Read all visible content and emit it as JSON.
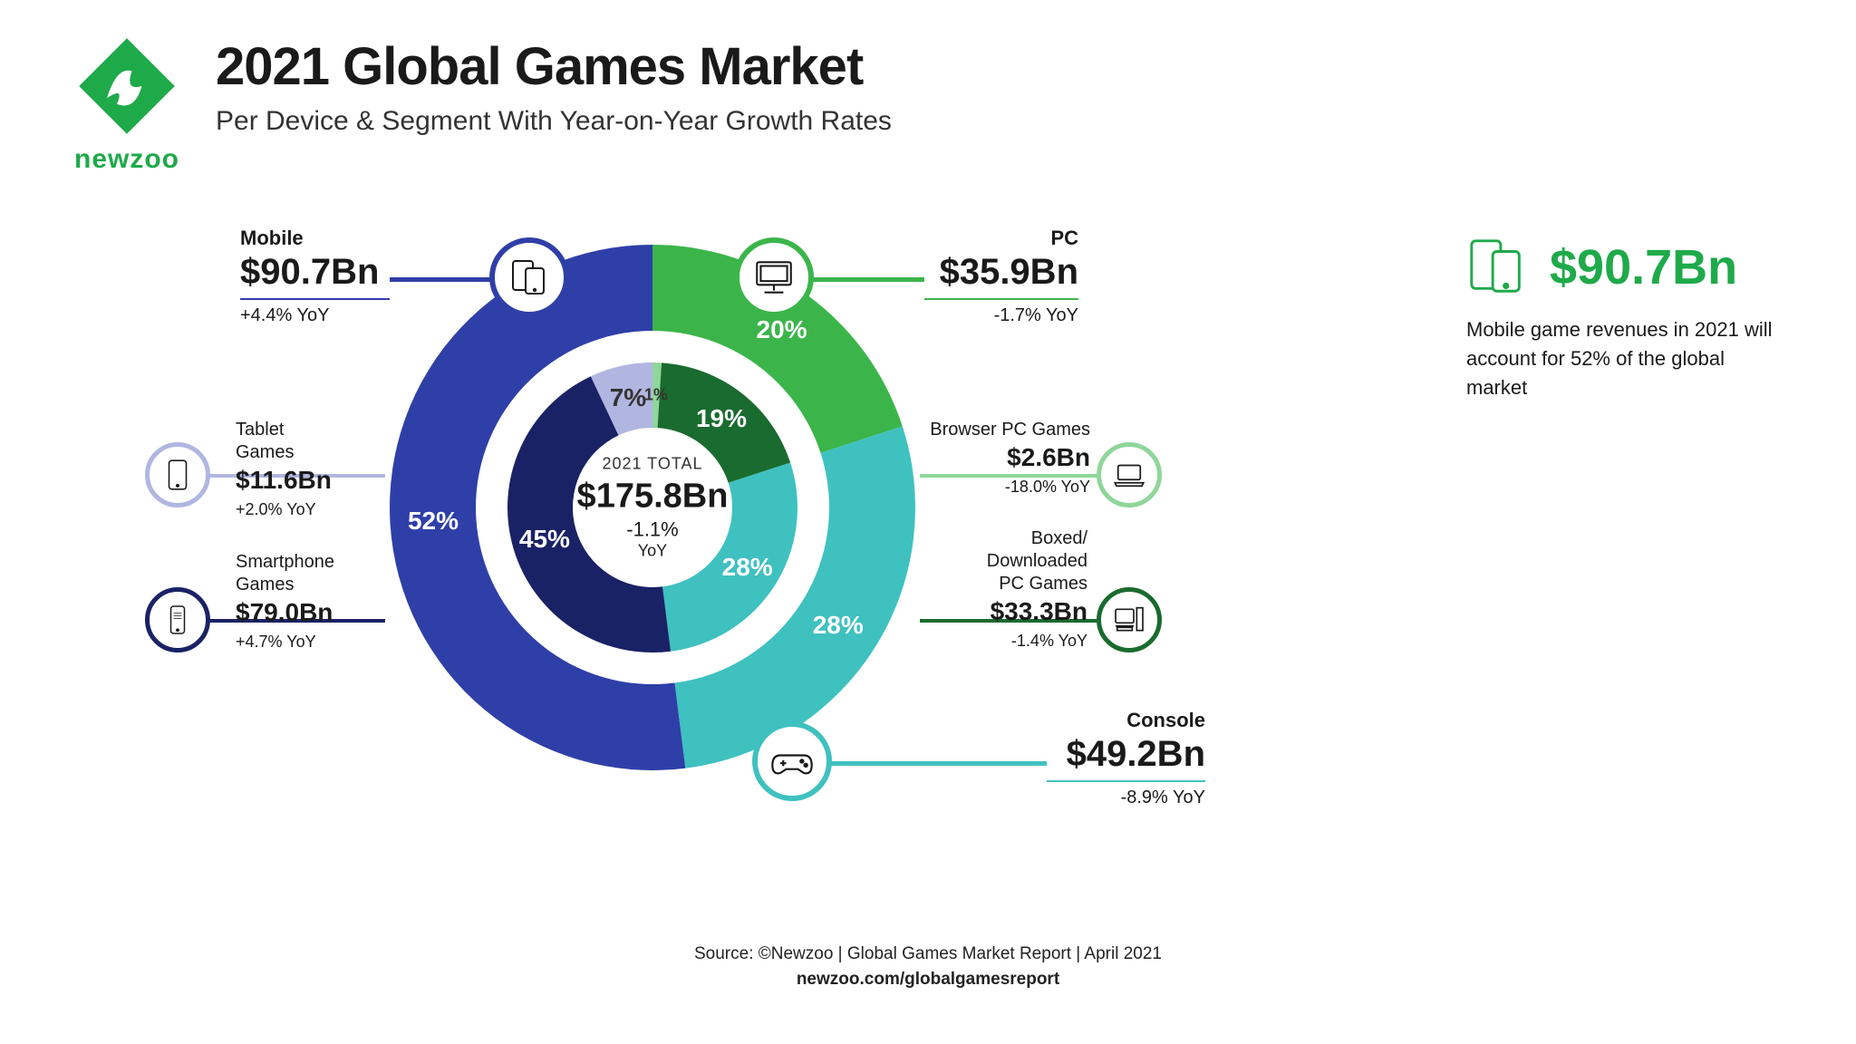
{
  "brand": {
    "name": "newzoo",
    "color": "#1faa4a"
  },
  "title": "2021 Global Games Market",
  "subtitle": "Per Device & Segment With Year-on-Year Growth Rates",
  "colors": {
    "mobile": "#2f3fa8",
    "pc": "#3bb54a",
    "console": "#3fc1c0",
    "tablet": "#b0b6e0",
    "smartphone": "#1a2266",
    "browserPC": "#8fd69a",
    "boxedPC": "#1a6b2f",
    "consoleInner": "#3fc1c0",
    "text": "#1a1a1a",
    "bg": "#ffffff"
  },
  "donut": {
    "outer_radius": 290,
    "outer_thickness": 95,
    "inner_radius": 160,
    "inner_thickness": 72,
    "type": "nested-donut",
    "outer": [
      {
        "key": "pc",
        "label": "20%",
        "pct": 20
      },
      {
        "key": "console",
        "label": "28%",
        "pct": 28
      },
      {
        "key": "mobile",
        "label": "52%",
        "pct": 52
      }
    ],
    "inner": [
      {
        "key": "browserPC",
        "label": "1%",
        "pct": 1
      },
      {
        "key": "boxedPC",
        "label": "19%",
        "pct": 19
      },
      {
        "key": "consoleInner",
        "label": "28%",
        "pct": 28
      },
      {
        "key": "smartphone",
        "label": "45%",
        "pct": 45
      },
      {
        "key": "tablet",
        "label": "7%",
        "pct": 7
      }
    ]
  },
  "center": {
    "label": "2021 TOTAL",
    "value": "$175.8Bn",
    "yoy": "-1.1%",
    "yoy2": "YoY"
  },
  "callouts": {
    "mobile": {
      "label": "Mobile",
      "value": "$90.7Bn",
      "yoy": "+4.4% YoY"
    },
    "pc": {
      "label": "PC",
      "value": "$35.9Bn",
      "yoy": "-1.7% YoY"
    },
    "console": {
      "label": "Console",
      "value": "$49.2Bn",
      "yoy": "-8.9% YoY"
    },
    "tablet": {
      "label": "Tablet Games",
      "value": "$11.6Bn",
      "yoy": "+2.0% YoY"
    },
    "smart": {
      "label": "Smartphone\nGames",
      "value": "$79.0Bn",
      "yoy": "+4.7% YoY"
    },
    "browser": {
      "label": "Browser PC Games",
      "value": "$2.6Bn",
      "yoy": "-18.0% YoY"
    },
    "boxed": {
      "label": "Boxed/\nDownloaded\nPC Games",
      "value": "$33.3Bn",
      "yoy": "-1.4% YoY"
    }
  },
  "side": {
    "value": "$90.7Bn",
    "desc": "Mobile game revenues in 2021 will account for 52% of the global market"
  },
  "footer": {
    "line1": "Source: ©Newzoo | Global Games Market Report | April 2021",
    "line2": "newzoo.com/globalgamesreport"
  }
}
